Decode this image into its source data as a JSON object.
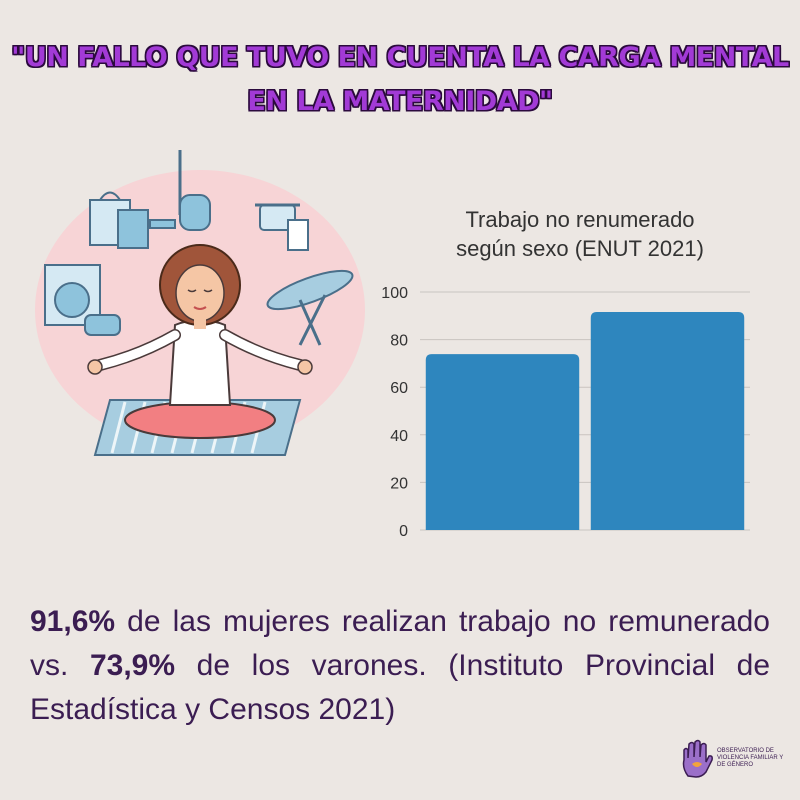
{
  "headline": {
    "line1": "\"UN FALLO QUE TUVO EN CUENTA LA CARGA MENTAL",
    "line2": "EN LA MATERNIDAD\""
  },
  "colors": {
    "headline": "#a23ad6",
    "bar": "#2e86be",
    "body_text": "#3b1d52",
    "background": "#ece7e3"
  },
  "chart_data": {
    "type": "bar",
    "title_line1": "Trabajo no renumerado",
    "title_line2": "según sexo (ENUT 2021)",
    "categories": [
      "",
      ""
    ],
    "values": [
      73.9,
      91.6
    ],
    "ylim": [
      0,
      100
    ],
    "yticks": [
      0,
      20,
      40,
      60,
      80,
      100
    ],
    "grid": true,
    "xlabel": "",
    "ylabel": ""
  },
  "body": {
    "stat1": "91,6%",
    "text1": " de las mujeres realizan trabajo no remunerado vs. ",
    "stat2": "73,9%",
    "text2": " de los varones. (Instituto Provincial de Estadística y Censos 2021)"
  },
  "logo": {
    "line1": "OBSERVATORIO DE",
    "line2": "VIOLENCIA FAMILIAR Y",
    "line3": "DE GÉNERO"
  },
  "icons": [
    "woman-meditating-illustration",
    "vacuum-icon",
    "shopping-bag-icon",
    "cooking-pot-icon",
    "washing-machine-icon",
    "ironing-board-icon",
    "hand-logo-icon"
  ]
}
